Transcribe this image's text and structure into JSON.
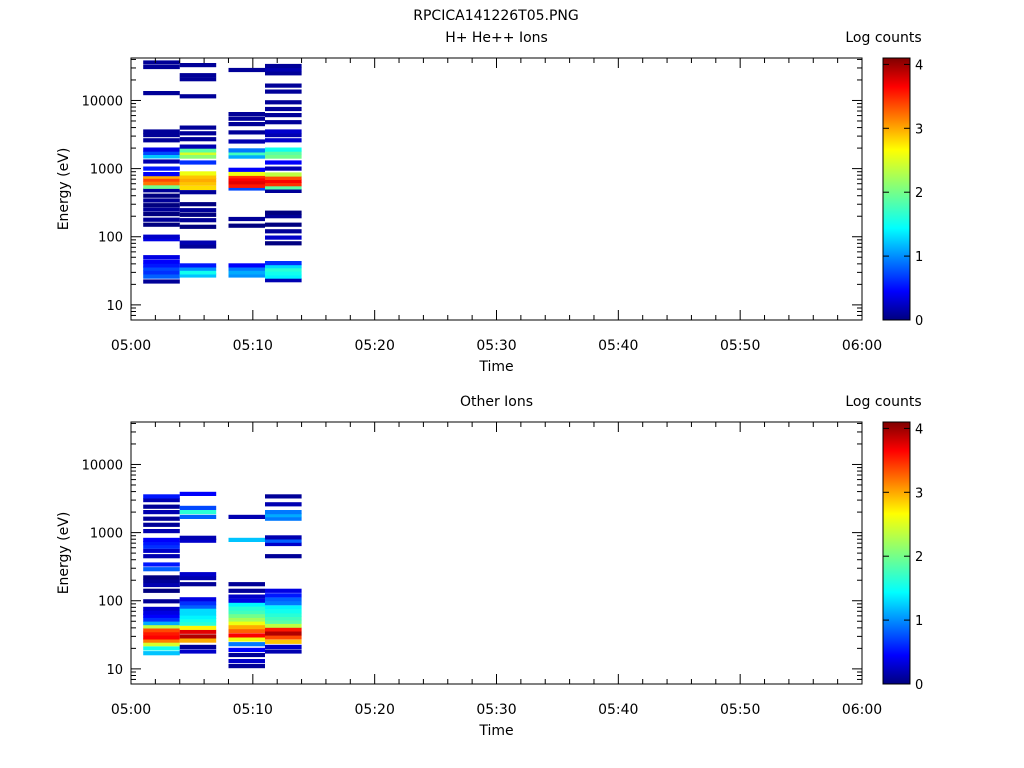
{
  "figure_title": "RPCICA141226T05.PNG",
  "chart_data": [
    {
      "type": "heatmap",
      "title": "H+ He++ Ions",
      "xlabel": "Time",
      "ylabel": "Energy (eV)",
      "x_ticks": [
        "05:00",
        "05:10",
        "05:20",
        "05:30",
        "05:40",
        "05:50",
        "06:00"
      ],
      "x_range": [
        "05:00",
        "06:00"
      ],
      "y_scale": "log",
      "y_ticks": [
        "10",
        "100",
        "1000",
        "10000"
      ],
      "y_range": [
        6,
        42000
      ],
      "colorbar": {
        "label": "Log counts",
        "ticks": [
          "0",
          "1",
          "2",
          "3",
          "4"
        ],
        "range": [
          0,
          4.1
        ]
      },
      "columns": [
        {
          "t_start": "05:01",
          "t_end": "05:04",
          "cells": [
            [
              22,
              0.1
            ],
            [
              26,
              0.9
            ],
            [
              30,
              0.7
            ],
            [
              34,
              0.8
            ],
            [
              38,
              0.6
            ],
            [
              43,
              0.5
            ],
            [
              50,
              0.4
            ],
            [
              92,
              0.4
            ],
            [
              100,
              0.3
            ],
            [
              150,
              0.0
            ],
            [
              178,
              0.1
            ],
            [
              215,
              0.0
            ],
            [
              250,
              0.1
            ],
            [
              290,
              0.0
            ],
            [
              340,
              0.1
            ],
            [
              400,
              0.0
            ],
            [
              480,
              0.1
            ],
            [
              540,
              2.0
            ],
            [
              610,
              3.1
            ],
            [
              690,
              3.3
            ],
            [
              760,
              2.9
            ],
            [
              830,
              0.5
            ],
            [
              1000,
              0.6
            ],
            [
              1270,
              0.2
            ],
            [
              1510,
              1.3
            ],
            [
              1700,
              0.8
            ],
            [
              1900,
              0.4
            ],
            [
              2600,
              0.1
            ],
            [
              3100,
              0.1
            ],
            [
              3500,
              0.1
            ],
            [
              12800,
              0.1
            ],
            [
              31000,
              0.1
            ],
            [
              36000,
              0.1
            ]
          ]
        },
        {
          "t_start": "05:04",
          "t_end": "05:07",
          "cells": [
            [
              27,
              1.3
            ],
            [
              30,
              1.6
            ],
            [
              34,
              1.1
            ],
            [
              38,
              0.6
            ],
            [
              72,
              0.1
            ],
            [
              82,
              0.2
            ],
            [
              140,
              0.0
            ],
            [
              175,
              0.1
            ],
            [
              210,
              0.0
            ],
            [
              245,
              0.1
            ],
            [
              300,
              0.0
            ],
            [
              450,
              0.1
            ],
            [
              520,
              2.7
            ],
            [
              600,
              2.8
            ],
            [
              680,
              2.9
            ],
            [
              760,
              2.8
            ],
            [
              850,
              2.5
            ],
            [
              1230,
              0.7
            ],
            [
              1500,
              2.1
            ],
            [
              1700,
              2.4
            ],
            [
              1850,
              1.9
            ],
            [
              2100,
              0.2
            ],
            [
              2700,
              0.1
            ],
            [
              3300,
              0.1
            ],
            [
              4000,
              0.1
            ],
            [
              11500,
              0.1
            ],
            [
              20500,
              0.1
            ],
            [
              23500,
              0.1
            ],
            [
              33000,
              0.1
            ]
          ]
        },
        {
          "t_start": "05:08",
          "t_end": "05:11",
          "cells": [
            [
              27,
              1.1
            ],
            [
              30,
              1.2
            ],
            [
              34,
              1.0
            ],
            [
              38,
              0.5
            ],
            [
              145,
              0.0
            ],
            [
              182,
              0.1
            ],
            [
              510,
              0.8
            ],
            [
              560,
              3.5
            ],
            [
              630,
              3.7
            ],
            [
              700,
              3.6
            ],
            [
              770,
              3.4
            ],
            [
              840,
              2.5
            ],
            [
              960,
              0.5
            ],
            [
              1500,
              1.2
            ],
            [
              1680,
              1.8
            ],
            [
              1850,
              1.0
            ],
            [
              2500,
              0.2
            ],
            [
              3400,
              0.1
            ],
            [
              4500,
              0.1
            ],
            [
              5400,
              0.1
            ],
            [
              6300,
              0.1
            ],
            [
              28000,
              0.1
            ]
          ]
        },
        {
          "t_start": "05:11",
          "t_end": "05:14",
          "cells": [
            [
              23,
              0.2
            ],
            [
              26,
              1.5
            ],
            [
              29,
              1.6
            ],
            [
              33,
              1.7
            ],
            [
              37,
              1.4
            ],
            [
              41,
              0.7
            ],
            [
              80,
              0.0
            ],
            [
              97,
              0.3
            ],
            [
              120,
              0.1
            ],
            [
              150,
              0.0
            ],
            [
              200,
              0.1
            ],
            [
              225,
              0.0
            ],
            [
              470,
              0.1
            ],
            [
              530,
              1.9
            ],
            [
              590,
              3.4
            ],
            [
              660,
              3.6
            ],
            [
              730,
              3.3
            ],
            [
              820,
              2.3
            ],
            [
              1000,
              0.2
            ],
            [
              1230,
              0.5
            ],
            [
              1500,
              2.0
            ],
            [
              1700,
              1.9
            ],
            [
              1900,
              1.6
            ],
            [
              2600,
              0.3
            ],
            [
              3100,
              0.2
            ],
            [
              3500,
              0.3
            ],
            [
              4800,
              0.1
            ],
            [
              6100,
              0.1
            ],
            [
              7500,
              0.1
            ],
            [
              9400,
              0.1
            ],
            [
              13500,
              0.1
            ],
            [
              16500,
              0.1
            ],
            [
              25000,
              0.1
            ],
            [
              28500,
              0.2
            ],
            [
              32000,
              0.1
            ]
          ]
        }
      ]
    },
    {
      "type": "heatmap",
      "title": "Other Ions",
      "xlabel": "Time",
      "ylabel": "Energy (eV)",
      "x_ticks": [
        "05:00",
        "05:10",
        "05:20",
        "05:30",
        "05:40",
        "05:50",
        "06:00"
      ],
      "x_range": [
        "05:00",
        "06:00"
      ],
      "y_scale": "log",
      "y_ticks": [
        "10",
        "100",
        "1000",
        "10000"
      ],
      "y_range": [
        6,
        42000
      ],
      "colorbar": {
        "label": "Log counts",
        "ticks": [
          "0",
          "1",
          "2",
          "3",
          "4"
        ],
        "range": [
          0,
          4.1
        ]
      },
      "columns": [
        {
          "t_start": "05:01",
          "t_end": "05:04",
          "cells": [
            [
              17,
              1.3
            ],
            [
              20,
              1.6
            ],
            [
              23,
              2.4
            ],
            [
              26,
              3.1
            ],
            [
              29,
              3.6
            ],
            [
              33,
              3.5
            ],
            [
              37,
              3.3
            ],
            [
              42,
              2.3
            ],
            [
              47,
              1.2
            ],
            [
              53,
              0.7
            ],
            [
              60,
              0.5
            ],
            [
              67,
              0.4
            ],
            [
              76,
              0.3
            ],
            [
              98,
              0.1
            ],
            [
              140,
              0.0
            ],
            [
              170,
              0.2
            ],
            [
              195,
              0.1
            ],
            [
              220,
              0.0
            ],
            [
              290,
              0.9
            ],
            [
              340,
              0.6
            ],
            [
              450,
              0.2
            ],
            [
              540,
              0.3
            ],
            [
              620,
              0.7
            ],
            [
              700,
              0.6
            ],
            [
              780,
              0.5
            ],
            [
              1050,
              0.2
            ],
            [
              1300,
              0.1
            ],
            [
              1600,
              0.1
            ],
            [
              2000,
              0.2
            ],
            [
              2400,
              0.1
            ],
            [
              3000,
              0.2
            ],
            [
              3400,
              0.6
            ]
          ]
        },
        {
          "t_start": "05:04",
          "t_end": "05:07",
          "cells": [
            [
              18,
              0.3
            ],
            [
              21,
              0.1
            ],
            [
              26,
              2.9
            ],
            [
              30,
              3.9
            ],
            [
              35,
              3.7
            ],
            [
              40,
              2.6
            ],
            [
              46,
              1.7
            ],
            [
              52,
              1.6
            ],
            [
              58,
              1.5
            ],
            [
              65,
              1.4
            ],
            [
              73,
              1.4
            ],
            [
              82,
              0.9
            ],
            [
              92,
              0.7
            ],
            [
              105,
              0.4
            ],
            [
              175,
              0.1
            ],
            [
              215,
              0.2
            ],
            [
              245,
              0.3
            ],
            [
              760,
              0.3
            ],
            [
              840,
              0.2
            ],
            [
              1700,
              0.9
            ],
            [
              2000,
              1.7
            ],
            [
              2300,
              0.8
            ],
            [
              3700,
              0.5
            ]
          ]
        },
        {
          "t_start": "05:08",
          "t_end": "05:11",
          "cells": [
            [
              11,
              0.1
            ],
            [
              13,
              0.3
            ],
            [
              16,
              0.1
            ],
            [
              19,
              0.5
            ],
            [
              23,
              1.0
            ],
            [
              27,
              2.5
            ],
            [
              31,
              3.6
            ],
            [
              36,
              3.2
            ],
            [
              41,
              2.9
            ],
            [
              47,
              2.5
            ],
            [
              53,
              2.2
            ],
            [
              60,
              2.0
            ],
            [
              68,
              1.8
            ],
            [
              77,
              1.7
            ],
            [
              88,
              1.5
            ],
            [
              100,
              0.4
            ],
            [
              115,
              0.3
            ],
            [
              140,
              0.1
            ],
            [
              175,
              0.1
            ],
            [
              780,
              1.3
            ],
            [
              1700,
              0.2
            ]
          ]
        },
        {
          "t_start": "05:11",
          "t_end": "05:14",
          "cells": [
            [
              18,
              0.2
            ],
            [
              21,
              0.3
            ],
            [
              25,
              2.8
            ],
            [
              29,
              3.3
            ],
            [
              33,
              3.9
            ],
            [
              38,
              3.5
            ],
            [
              43,
              2.3
            ],
            [
              49,
              1.9
            ],
            [
              55,
              1.8
            ],
            [
              62,
              1.7
            ],
            [
              70,
              1.6
            ],
            [
              80,
              1.5
            ],
            [
              92,
              1.0
            ],
            [
              105,
              0.9
            ],
            [
              120,
              0.6
            ],
            [
              140,
              0.4
            ],
            [
              450,
              0.1
            ],
            [
              680,
              0.3
            ],
            [
              760,
              0.9
            ],
            [
              850,
              0.2
            ],
            [
              1600,
              1.0
            ],
            [
              1800,
              1.2
            ],
            [
              2000,
              1.0
            ],
            [
              2600,
              0.2
            ],
            [
              3400,
              0.1
            ]
          ]
        }
      ]
    }
  ]
}
